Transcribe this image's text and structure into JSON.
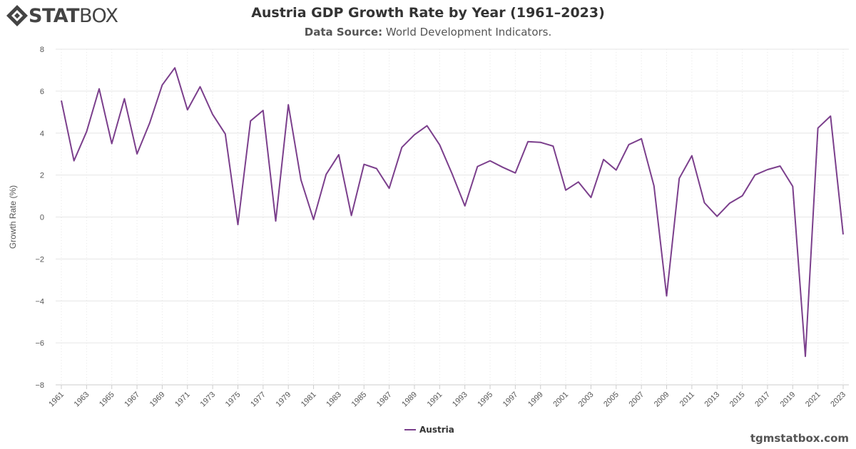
{
  "brand": {
    "logo_bold": "STAT",
    "logo_light": "BOX",
    "watermark": "tgmstatbox.com"
  },
  "header": {
    "title": "Austria GDP Growth Rate by Year (1961–2023)",
    "source_label": "Data Source:",
    "source_value": "World Development Indicators."
  },
  "chart_data": {
    "type": "line",
    "title": "Austria GDP Growth Rate by Year (1961–2023)",
    "xlabel": "",
    "ylabel": "Growth Rate (%)",
    "ylim": [
      -8,
      8
    ],
    "yticks": [
      8,
      6,
      4,
      2,
      0,
      -2,
      -4,
      -6,
      -8
    ],
    "xlim": [
      1961,
      2023
    ],
    "xticks": [
      1961,
      1963,
      1965,
      1967,
      1969,
      1971,
      1973,
      1975,
      1977,
      1979,
      1981,
      1983,
      1985,
      1987,
      1989,
      1991,
      1993,
      1995,
      1997,
      1999,
      2001,
      2003,
      2005,
      2007,
      2009,
      2011,
      2013,
      2015,
      2017,
      2019,
      2021,
      2023
    ],
    "grid": true,
    "legend_position": "bottom-center",
    "colors": {
      "line": "#7b3f8c",
      "grid": "#e6e6e6",
      "axis": "#cccccc"
    },
    "series": [
      {
        "name": "Austria",
        "x": [
          1961,
          1962,
          1963,
          1964,
          1965,
          1966,
          1967,
          1968,
          1969,
          1970,
          1971,
          1972,
          1973,
          1974,
          1975,
          1976,
          1977,
          1978,
          1979,
          1980,
          1981,
          1982,
          1983,
          1984,
          1985,
          1986,
          1987,
          1988,
          1989,
          1990,
          1991,
          1992,
          1993,
          1994,
          1995,
          1996,
          1997,
          1998,
          1999,
          2000,
          2001,
          2002,
          2003,
          2004,
          2005,
          2006,
          2007,
          2008,
          2009,
          2010,
          2011,
          2012,
          2013,
          2014,
          2015,
          2016,
          2017,
          2018,
          2019,
          2020,
          2021,
          2022,
          2023
        ],
        "values": [
          5.55,
          2.68,
          4.07,
          6.11,
          3.5,
          5.64,
          3.01,
          4.47,
          6.29,
          7.11,
          5.11,
          6.21,
          4.89,
          3.96,
          -0.36,
          4.58,
          5.08,
          -0.19,
          5.35,
          1.77,
          -0.12,
          2.03,
          2.97,
          0.07,
          2.51,
          2.31,
          1.37,
          3.32,
          3.92,
          4.35,
          3.44,
          2.04,
          0.53,
          2.41,
          2.68,
          2.37,
          2.1,
          3.59,
          3.56,
          3.38,
          1.28,
          1.67,
          0.93,
          2.74,
          2.24,
          3.45,
          3.73,
          1.48,
          -3.76,
          1.84,
          2.92,
          0.68,
          0.03,
          0.66,
          1.01,
          2.0,
          2.26,
          2.43,
          1.46,
          -6.64,
          4.24,
          4.81,
          -0.83
        ]
      }
    ]
  }
}
